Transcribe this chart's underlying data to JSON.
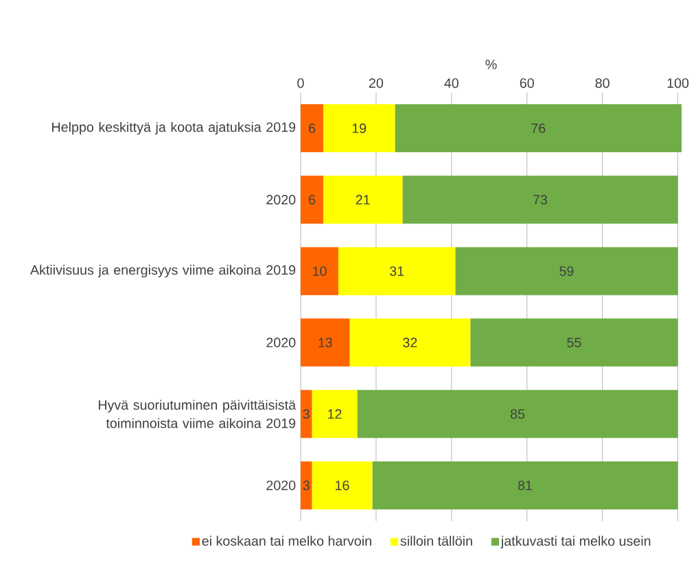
{
  "chart_data": {
    "type": "bar",
    "orientation": "horizontal",
    "stacked": true,
    "xlabel": "%",
    "categories": [
      "Helppo keskittyä ja koota ajatuksia  2019",
      "2020",
      "Aktiivisuus ja energisyys viime aikoina 2019",
      "2020",
      "Hyvä suoriutuminen päivittäisistä toiminnoista viime aikoina 2019",
      "2020"
    ],
    "series": [
      {
        "name": "ei koskaan tai melko harvoin",
        "color": "#ff6600",
        "values": [
          6,
          6,
          10,
          13,
          3,
          3
        ]
      },
      {
        "name": "silloin tällöin",
        "color": "#ffff00",
        "values": [
          19,
          21,
          31,
          32,
          12,
          16
        ]
      },
      {
        "name": "jatkuvasti tai melko usein",
        "color": "#70ad47",
        "values": [
          76,
          73,
          59,
          55,
          85,
          81
        ]
      }
    ],
    "xlim": [
      0,
      101
    ],
    "xticks": [
      0,
      20,
      40,
      60,
      80,
      100
    ],
    "grid": "x",
    "legend": "bottom",
    "data_labels": true
  }
}
